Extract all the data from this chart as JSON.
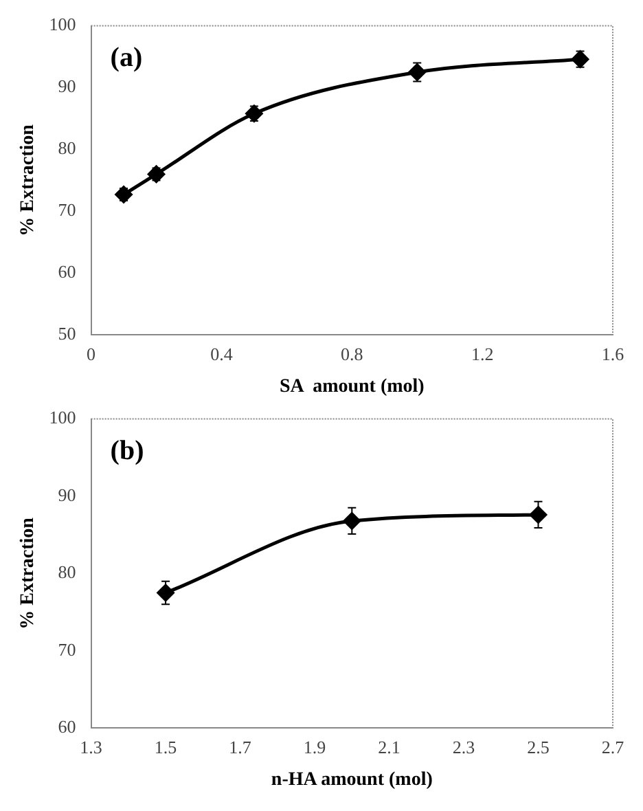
{
  "chart_data": [
    {
      "type": "line",
      "annotations": [
        "(a)"
      ],
      "xlabel": "SA  amount (mol)",
      "ylabel": "% Extraction",
      "x": [
        0.1,
        0.2,
        0.5,
        1.0,
        1.5
      ],
      "values": [
        72.7,
        76.0,
        85.8,
        92.5,
        94.6
      ],
      "errors": [
        1.0,
        1.0,
        1.2,
        1.5,
        1.3
      ],
      "color": "#000000",
      "marker": "diamond",
      "line_style": "solid",
      "xlim": [
        0,
        1.6
      ],
      "xticks": [
        0,
        0.4,
        0.8,
        1.2,
        1.6
      ],
      "ylim": [
        50,
        100
      ],
      "yticks": [
        50,
        60,
        70,
        80,
        90,
        100
      ],
      "grid": false,
      "legend": false
    },
    {
      "type": "line",
      "annotations": [
        "(b)"
      ],
      "xlabel": "n-HA amount (mol)",
      "ylabel": "% Extraction",
      "x": [
        1.5,
        2.0,
        2.5
      ],
      "values": [
        77.5,
        86.8,
        87.6
      ],
      "errors": [
        1.5,
        1.7,
        1.7
      ],
      "color": "#000000",
      "marker": "diamond",
      "line_style": "solid",
      "xlim": [
        1.3,
        2.7
      ],
      "xticks": [
        1.3,
        1.5,
        1.7,
        1.9,
        2.1,
        2.3,
        2.5,
        2.7
      ],
      "ylim": [
        60,
        100
      ],
      "yticks": [
        60,
        70,
        80,
        90,
        100
      ],
      "grid": false,
      "legend": false
    }
  ]
}
